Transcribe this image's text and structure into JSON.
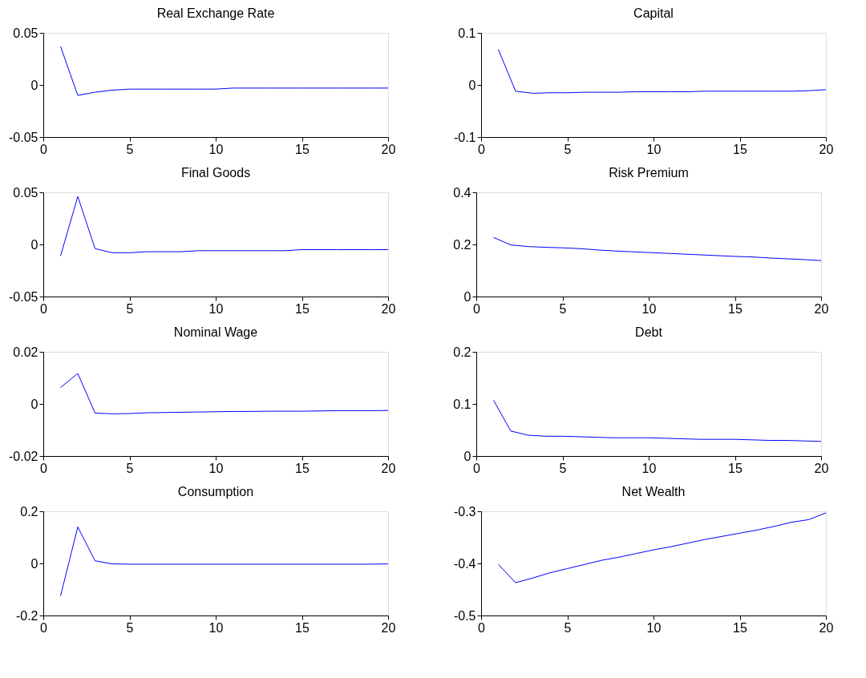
{
  "chart_data": [
    {
      "type": "line",
      "title": "Real Exchange Rate",
      "x": [
        1,
        2,
        3,
        4,
        5,
        6,
        7,
        8,
        9,
        10,
        11,
        12,
        13,
        14,
        15,
        16,
        17,
        18,
        19,
        20
      ],
      "xlim": [
        0,
        20
      ],
      "xticks": [
        0,
        5,
        10,
        15,
        20
      ],
      "ylim": [
        -0.05,
        0.05
      ],
      "yticks": [
        -0.05,
        0,
        0.05
      ],
      "grid": false,
      "series": [
        {
          "color": "#0000ff",
          "values": [
            0.037,
            -0.01,
            -0.007,
            -0.005,
            -0.004,
            -0.004,
            -0.004,
            -0.004,
            -0.004,
            -0.004,
            -0.003,
            -0.003,
            -0.003,
            -0.003,
            -0.003,
            -0.003,
            -0.003,
            -0.003,
            -0.003,
            -0.003
          ]
        }
      ]
    },
    {
      "type": "line",
      "title": "Capital",
      "x": [
        1,
        2,
        3,
        4,
        5,
        6,
        7,
        8,
        9,
        10,
        11,
        12,
        13,
        14,
        15,
        16,
        17,
        18,
        19,
        20
      ],
      "xlim": [
        0,
        20
      ],
      "xticks": [
        0,
        5,
        10,
        15,
        20
      ],
      "ylim": [
        -0.1,
        0.1
      ],
      "yticks": [
        -0.1,
        0,
        0.1
      ],
      "grid": false,
      "series": [
        {
          "color": "#0000ff",
          "values": [
            0.068,
            -0.012,
            -0.016,
            -0.015,
            -0.015,
            -0.014,
            -0.014,
            -0.014,
            -0.013,
            -0.013,
            -0.013,
            -0.013,
            -0.012,
            -0.012,
            -0.012,
            -0.012,
            -0.012,
            -0.012,
            -0.011,
            -0.009
          ]
        }
      ]
    },
    {
      "type": "line",
      "title": "Final Goods",
      "x": [
        1,
        2,
        3,
        4,
        5,
        6,
        7,
        8,
        9,
        10,
        11,
        12,
        13,
        14,
        15,
        16,
        17,
        18,
        19,
        20
      ],
      "xlim": [
        0,
        20
      ],
      "xticks": [
        0,
        5,
        10,
        15,
        20
      ],
      "ylim": [
        -0.05,
        0.05
      ],
      "yticks": [
        -0.05,
        0,
        0.05
      ],
      "grid": false,
      "series": [
        {
          "color": "#0000ff",
          "values": [
            -0.011,
            0.046,
            -0.004,
            -0.008,
            -0.008,
            -0.007,
            -0.007,
            -0.007,
            -0.006,
            -0.006,
            -0.006,
            -0.006,
            -0.006,
            -0.006,
            -0.005,
            -0.005,
            -0.005,
            -0.005,
            -0.005,
            -0.005
          ]
        }
      ]
    },
    {
      "type": "line",
      "title": "Risk Premium",
      "x": [
        1,
        2,
        3,
        4,
        5,
        6,
        7,
        8,
        9,
        10,
        11,
        12,
        13,
        14,
        15,
        16,
        17,
        18,
        19,
        20
      ],
      "xlim": [
        0,
        20
      ],
      "xticks": [
        0,
        5,
        10,
        15,
        20
      ],
      "ylim": [
        0,
        0.4
      ],
      "yticks": [
        0,
        0.2,
        0.4
      ],
      "grid": false,
      "series": [
        {
          "color": "#0000ff",
          "values": [
            0.227,
            0.198,
            0.192,
            0.189,
            0.187,
            0.184,
            0.179,
            0.175,
            0.172,
            0.169,
            0.166,
            0.163,
            0.16,
            0.157,
            0.154,
            0.152,
            0.148,
            0.145,
            0.142,
            0.138
          ]
        }
      ]
    },
    {
      "type": "line",
      "title": "Nominal Wage",
      "x": [
        1,
        2,
        3,
        4,
        5,
        6,
        7,
        8,
        9,
        10,
        11,
        12,
        13,
        14,
        15,
        16,
        17,
        18,
        19,
        20
      ],
      "xlim": [
        0,
        20
      ],
      "xticks": [
        0,
        5,
        10,
        15,
        20
      ],
      "ylim": [
        -0.02,
        0.02
      ],
      "yticks": [
        -0.02,
        0,
        0.02
      ],
      "grid": false,
      "series": [
        {
          "color": "#0000ff",
          "values": [
            0.0063,
            0.0117,
            -0.0035,
            -0.0038,
            -0.0037,
            -0.0034,
            -0.0033,
            -0.0032,
            -0.0031,
            -0.003,
            -0.0029,
            -0.0029,
            -0.0028,
            -0.0028,
            -0.0028,
            -0.0027,
            -0.0026,
            -0.0026,
            -0.0026,
            -0.0025
          ]
        }
      ]
    },
    {
      "type": "line",
      "title": "Debt",
      "x": [
        1,
        2,
        3,
        4,
        5,
        6,
        7,
        8,
        9,
        10,
        11,
        12,
        13,
        14,
        15,
        16,
        17,
        18,
        19,
        20
      ],
      "xlim": [
        0,
        20
      ],
      "xticks": [
        0,
        5,
        10,
        15,
        20
      ],
      "ylim": [
        0,
        0.2
      ],
      "yticks": [
        0,
        0.1,
        0.2
      ],
      "grid": false,
      "series": [
        {
          "color": "#0000ff",
          "values": [
            0.107,
            0.048,
            0.04,
            0.038,
            0.038,
            0.037,
            0.036,
            0.035,
            0.035,
            0.035,
            0.034,
            0.033,
            0.032,
            0.032,
            0.032,
            0.031,
            0.03,
            0.03,
            0.029,
            0.028
          ]
        }
      ]
    },
    {
      "type": "line",
      "title": "Consumption",
      "x": [
        1,
        2,
        3,
        4,
        5,
        6,
        7,
        8,
        9,
        10,
        11,
        12,
        13,
        14,
        15,
        16,
        17,
        18,
        19,
        20
      ],
      "xlim": [
        0,
        20
      ],
      "xticks": [
        0,
        5,
        10,
        15,
        20
      ],
      "ylim": [
        -0.2,
        0.2
      ],
      "yticks": [
        -0.2,
        0,
        0.2
      ],
      "grid": false,
      "series": [
        {
          "color": "#0000ff",
          "values": [
            -0.125,
            0.14,
            0.01,
            -0.002,
            -0.003,
            -0.003,
            -0.003,
            -0.003,
            -0.003,
            -0.003,
            -0.003,
            -0.003,
            -0.003,
            -0.003,
            -0.003,
            -0.003,
            -0.003,
            -0.003,
            -0.003,
            -0.002
          ]
        }
      ]
    },
    {
      "type": "line",
      "title": "Net Wealth",
      "x": [
        1,
        2,
        3,
        4,
        5,
        6,
        7,
        8,
        9,
        10,
        11,
        12,
        13,
        14,
        15,
        16,
        17,
        18,
        19,
        20
      ],
      "xlim": [
        0,
        20
      ],
      "xticks": [
        0,
        5,
        10,
        15,
        20
      ],
      "ylim": [
        -0.5,
        -0.3
      ],
      "yticks": [
        -0.5,
        -0.4,
        -0.3
      ],
      "grid": false,
      "series": [
        {
          "color": "#0000ff",
          "values": [
            -0.402,
            -0.437,
            -0.428,
            -0.418,
            -0.41,
            -0.402,
            -0.394,
            -0.388,
            -0.381,
            -0.374,
            -0.368,
            -0.361,
            -0.354,
            -0.348,
            -0.342,
            -0.336,
            -0.329,
            -0.321,
            -0.316,
            -0.303
          ]
        }
      ]
    }
  ]
}
